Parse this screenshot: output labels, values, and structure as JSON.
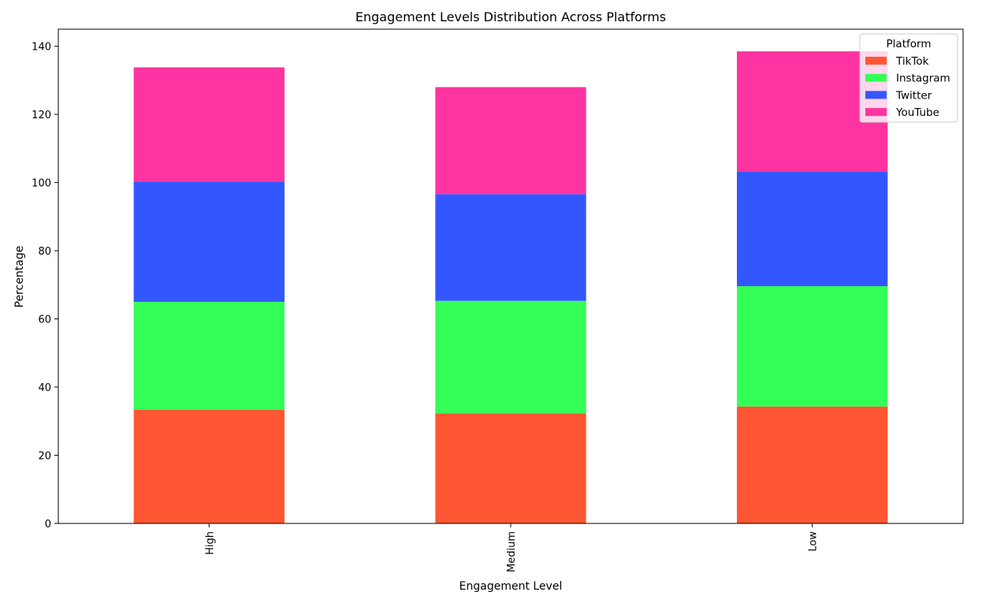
{
  "chart_data": {
    "type": "bar",
    "stacked": true,
    "title": "Engagement Levels Distribution Across Platforms",
    "xlabel": "Engagement Level",
    "ylabel": "Percentage",
    "categories": [
      "High",
      "Medium",
      "Low"
    ],
    "ylim": [
      0,
      145
    ],
    "yticks": [
      0,
      20,
      40,
      60,
      80,
      100,
      120,
      140
    ],
    "grid": false,
    "legend": {
      "title": "Platform",
      "position": "top-right"
    },
    "series": [
      {
        "name": "TikTok",
        "color": "#FF5733",
        "values": [
          33.3,
          32.3,
          34.3
        ]
      },
      {
        "name": "Instagram",
        "color": "#33FF57",
        "values": [
          31.7,
          33.0,
          35.3
        ]
      },
      {
        "name": "Twitter",
        "color": "#3357FF",
        "values": [
          35.3,
          31.3,
          33.7
        ]
      },
      {
        "name": "YouTube",
        "color": "#FF33A1",
        "values": [
          33.5,
          31.4,
          35.2
        ]
      }
    ]
  }
}
